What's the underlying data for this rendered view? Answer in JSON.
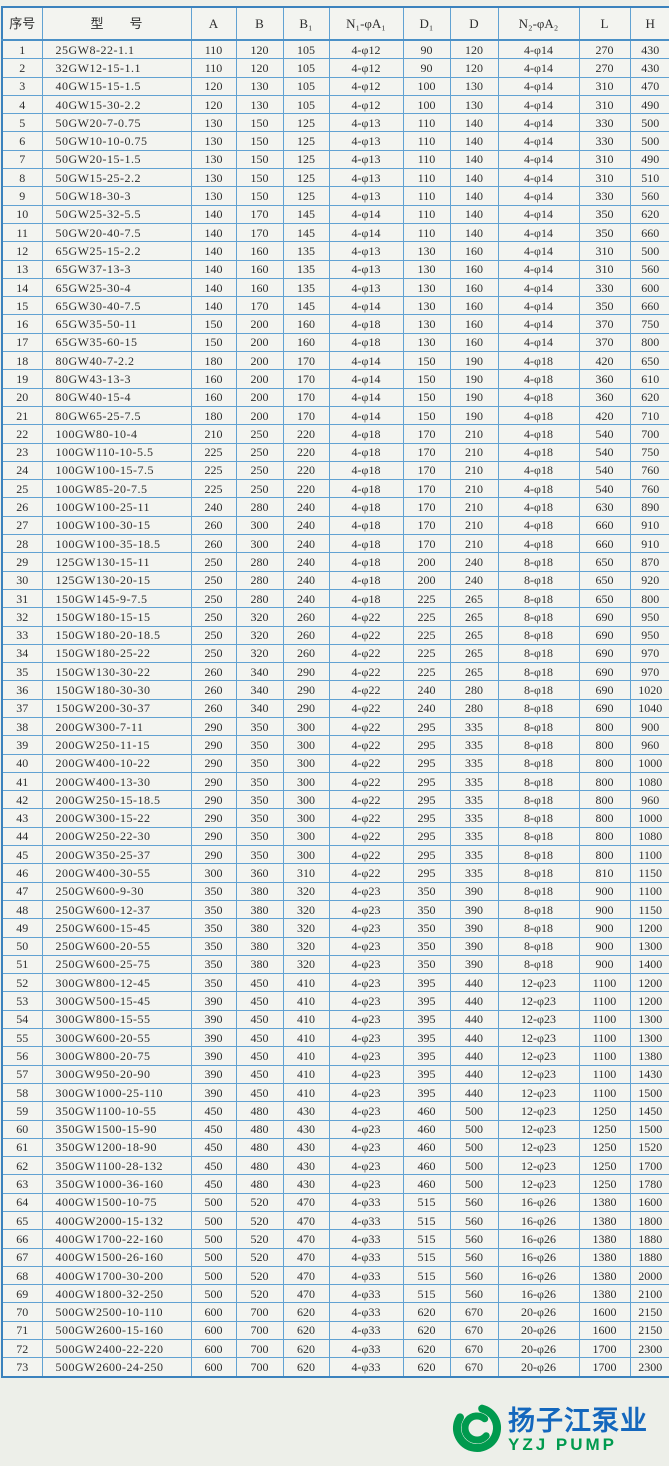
{
  "table": {
    "columns": [
      "序号",
      "型　　号",
      "A",
      "B",
      "B₁",
      "N₁-φA₁",
      "D₁",
      "D",
      "N₂-φA₂",
      "L",
      "H"
    ],
    "rows": [
      [
        "1",
        "25GW8-22-1.1",
        "110",
        "120",
        "105",
        "4-φ12",
        "90",
        "120",
        "4-φ14",
        "270",
        "430"
      ],
      [
        "2",
        "32GW12-15-1.1",
        "110",
        "120",
        "105",
        "4-φ12",
        "90",
        "120",
        "4-φ14",
        "270",
        "430"
      ],
      [
        "3",
        "40GW15-15-1.5",
        "120",
        "130",
        "105",
        "4-φ12",
        "100",
        "130",
        "4-φ14",
        "310",
        "470"
      ],
      [
        "4",
        "40GW15-30-2.2",
        "120",
        "130",
        "105",
        "4-φ12",
        "100",
        "130",
        "4-φ14",
        "310",
        "490"
      ],
      [
        "5",
        "50GW20-7-0.75",
        "130",
        "150",
        "125",
        "4-φ13",
        "110",
        "140",
        "4-φ14",
        "330",
        "500"
      ],
      [
        "6",
        "50GW10-10-0.75",
        "130",
        "150",
        "125",
        "4-φ13",
        "110",
        "140",
        "4-φ14",
        "330",
        "500"
      ],
      [
        "7",
        "50GW20-15-1.5",
        "130",
        "150",
        "125",
        "4-φ13",
        "110",
        "140",
        "4-φ14",
        "310",
        "490"
      ],
      [
        "8",
        "50GW15-25-2.2",
        "130",
        "150",
        "125",
        "4-φ13",
        "110",
        "140",
        "4-φ14",
        "310",
        "510"
      ],
      [
        "9",
        "50GW18-30-3",
        "130",
        "150",
        "125",
        "4-φ13",
        "110",
        "140",
        "4-φ14",
        "330",
        "560"
      ],
      [
        "10",
        "50GW25-32-5.5",
        "140",
        "170",
        "145",
        "4-φ14",
        "110",
        "140",
        "4-φ14",
        "350",
        "620"
      ],
      [
        "11",
        "50GW20-40-7.5",
        "140",
        "170",
        "145",
        "4-φ14",
        "110",
        "140",
        "4-φ14",
        "350",
        "660"
      ],
      [
        "12",
        "65GW25-15-2.2",
        "140",
        "160",
        "135",
        "4-φ13",
        "130",
        "160",
        "4-φ14",
        "310",
        "500"
      ],
      [
        "13",
        "65GW37-13-3",
        "140",
        "160",
        "135",
        "4-φ13",
        "130",
        "160",
        "4-φ14",
        "310",
        "560"
      ],
      [
        "14",
        "65GW25-30-4",
        "140",
        "160",
        "135",
        "4-φ13",
        "130",
        "160",
        "4-φ14",
        "330",
        "600"
      ],
      [
        "15",
        "65GW30-40-7.5",
        "140",
        "170",
        "145",
        "4-φ14",
        "130",
        "160",
        "4-φ14",
        "350",
        "660"
      ],
      [
        "16",
        "65GW35-50-11",
        "150",
        "200",
        "160",
        "4-φ18",
        "130",
        "160",
        "4-φ14",
        "370",
        "750"
      ],
      [
        "17",
        "65GW35-60-15",
        "150",
        "200",
        "160",
        "4-φ18",
        "130",
        "160",
        "4-φ14",
        "370",
        "800"
      ],
      [
        "18",
        "80GW40-7-2.2",
        "180",
        "200",
        "170",
        "4-φ14",
        "150",
        "190",
        "4-φ18",
        "420",
        "650"
      ],
      [
        "19",
        "80GW43-13-3",
        "160",
        "200",
        "170",
        "4-φ14",
        "150",
        "190",
        "4-φ18",
        "360",
        "610"
      ],
      [
        "20",
        "80GW40-15-4",
        "160",
        "200",
        "170",
        "4-φ14",
        "150",
        "190",
        "4-φ18",
        "360",
        "620"
      ],
      [
        "21",
        "80GW65-25-7.5",
        "180",
        "200",
        "170",
        "4-φ14",
        "150",
        "190",
        "4-φ18",
        "420",
        "710"
      ],
      [
        "22",
        "100GW80-10-4",
        "210",
        "250",
        "220",
        "4-φ18",
        "170",
        "210",
        "4-φ18",
        "540",
        "700"
      ],
      [
        "23",
        "100GW110-10-5.5",
        "225",
        "250",
        "220",
        "4-φ18",
        "170",
        "210",
        "4-φ18",
        "540",
        "750"
      ],
      [
        "24",
        "100GW100-15-7.5",
        "225",
        "250",
        "220",
        "4-φ18",
        "170",
        "210",
        "4-φ18",
        "540",
        "760"
      ],
      [
        "25",
        "100GW85-20-7.5",
        "225",
        "250",
        "220",
        "4-φ18",
        "170",
        "210",
        "4-φ18",
        "540",
        "760"
      ],
      [
        "26",
        "100GW100-25-11",
        "240",
        "280",
        "240",
        "4-φ18",
        "170",
        "210",
        "4-φ18",
        "630",
        "890"
      ],
      [
        "27",
        "100GW100-30-15",
        "260",
        "300",
        "240",
        "4-φ18",
        "170",
        "210",
        "4-φ18",
        "660",
        "910"
      ],
      [
        "28",
        "100GW100-35-18.5",
        "260",
        "300",
        "240",
        "4-φ18",
        "170",
        "210",
        "4-φ18",
        "660",
        "910"
      ],
      [
        "29",
        "125GW130-15-11",
        "250",
        "280",
        "240",
        "4-φ18",
        "200",
        "240",
        "8-φ18",
        "650",
        "870"
      ],
      [
        "30",
        "125GW130-20-15",
        "250",
        "280",
        "240",
        "4-φ18",
        "200",
        "240",
        "8-φ18",
        "650",
        "920"
      ],
      [
        "31",
        "150GW145-9-7.5",
        "250",
        "280",
        "240",
        "4-φ18",
        "225",
        "265",
        "8-φ18",
        "650",
        "800"
      ],
      [
        "32",
        "150GW180-15-15",
        "250",
        "320",
        "260",
        "4-φ22",
        "225",
        "265",
        "8-φ18",
        "690",
        "950"
      ],
      [
        "33",
        "150GW180-20-18.5",
        "250",
        "320",
        "260",
        "4-φ22",
        "225",
        "265",
        "8-φ18",
        "690",
        "950"
      ],
      [
        "34",
        "150GW180-25-22",
        "250",
        "320",
        "260",
        "4-φ22",
        "225",
        "265",
        "8-φ18",
        "690",
        "970"
      ],
      [
        "35",
        "150GW130-30-22",
        "260",
        "340",
        "290",
        "4-φ22",
        "225",
        "265",
        "8-φ18",
        "690",
        "970"
      ],
      [
        "36",
        "150GW180-30-30",
        "260",
        "340",
        "290",
        "4-φ22",
        "240",
        "280",
        "8-φ18",
        "690",
        "1020"
      ],
      [
        "37",
        "150GW200-30-37",
        "260",
        "340",
        "290",
        "4-φ22",
        "240",
        "280",
        "8-φ18",
        "690",
        "1040"
      ],
      [
        "38",
        "200GW300-7-11",
        "290",
        "350",
        "300",
        "4-φ22",
        "295",
        "335",
        "8-φ18",
        "800",
        "900"
      ],
      [
        "39",
        "200GW250-11-15",
        "290",
        "350",
        "300",
        "4-φ22",
        "295",
        "335",
        "8-φ18",
        "800",
        "960"
      ],
      [
        "40",
        "200GW400-10-22",
        "290",
        "350",
        "300",
        "4-φ22",
        "295",
        "335",
        "8-φ18",
        "800",
        "1000"
      ],
      [
        "41",
        "200GW400-13-30",
        "290",
        "350",
        "300",
        "4-φ22",
        "295",
        "335",
        "8-φ18",
        "800",
        "1080"
      ],
      [
        "42",
        "200GW250-15-18.5",
        "290",
        "350",
        "300",
        "4-φ22",
        "295",
        "335",
        "8-φ18",
        "800",
        "960"
      ],
      [
        "43",
        "200GW300-15-22",
        "290",
        "350",
        "300",
        "4-φ22",
        "295",
        "335",
        "8-φ18",
        "800",
        "1000"
      ],
      [
        "44",
        "200GW250-22-30",
        "290",
        "350",
        "300",
        "4-φ22",
        "295",
        "335",
        "8-φ18",
        "800",
        "1080"
      ],
      [
        "45",
        "200GW350-25-37",
        "290",
        "350",
        "300",
        "4-φ22",
        "295",
        "335",
        "8-φ18",
        "800",
        "1100"
      ],
      [
        "46",
        "200GW400-30-55",
        "300",
        "360",
        "310",
        "4-φ22",
        "295",
        "335",
        "8-φ18",
        "810",
        "1150"
      ],
      [
        "47",
        "250GW600-9-30",
        "350",
        "380",
        "320",
        "4-φ23",
        "350",
        "390",
        "8-φ18",
        "900",
        "1100"
      ],
      [
        "48",
        "250GW600-12-37",
        "350",
        "380",
        "320",
        "4-φ23",
        "350",
        "390",
        "8-φ18",
        "900",
        "1150"
      ],
      [
        "49",
        "250GW600-15-45",
        "350",
        "380",
        "320",
        "4-φ23",
        "350",
        "390",
        "8-φ18",
        "900",
        "1200"
      ],
      [
        "50",
        "250GW600-20-55",
        "350",
        "380",
        "320",
        "4-φ23",
        "350",
        "390",
        "8-φ18",
        "900",
        "1300"
      ],
      [
        "51",
        "250GW600-25-75",
        "350",
        "380",
        "320",
        "4-φ23",
        "350",
        "390",
        "8-φ18",
        "900",
        "1400"
      ],
      [
        "52",
        "300GW800-12-45",
        "350",
        "450",
        "410",
        "4-φ23",
        "395",
        "440",
        "12-φ23",
        "1100",
        "1200"
      ],
      [
        "53",
        "300GW500-15-45",
        "390",
        "450",
        "410",
        "4-φ23",
        "395",
        "440",
        "12-φ23",
        "1100",
        "1200"
      ],
      [
        "54",
        "300GW800-15-55",
        "390",
        "450",
        "410",
        "4-φ23",
        "395",
        "440",
        "12-φ23",
        "1100",
        "1300"
      ],
      [
        "55",
        "300GW600-20-55",
        "390",
        "450",
        "410",
        "4-φ23",
        "395",
        "440",
        "12-φ23",
        "1100",
        "1300"
      ],
      [
        "56",
        "300GW800-20-75",
        "390",
        "450",
        "410",
        "4-φ23",
        "395",
        "440",
        "12-φ23",
        "1100",
        "1380"
      ],
      [
        "57",
        "300GW950-20-90",
        "390",
        "450",
        "410",
        "4-φ23",
        "395",
        "440",
        "12-φ23",
        "1100",
        "1430"
      ],
      [
        "58",
        "300GW1000-25-110",
        "390",
        "450",
        "410",
        "4-φ23",
        "395",
        "440",
        "12-φ23",
        "1100",
        "1500"
      ],
      [
        "59",
        "350GW1100-10-55",
        "450",
        "480",
        "430",
        "4-φ23",
        "460",
        "500",
        "12-φ23",
        "1250",
        "1450"
      ],
      [
        "60",
        "350GW1500-15-90",
        "450",
        "480",
        "430",
        "4-φ23",
        "460",
        "500",
        "12-φ23",
        "1250",
        "1500"
      ],
      [
        "61",
        "350GW1200-18-90",
        "450",
        "480",
        "430",
        "4-φ23",
        "460",
        "500",
        "12-φ23",
        "1250",
        "1520"
      ],
      [
        "62",
        "350GW1100-28-132",
        "450",
        "480",
        "430",
        "4-φ23",
        "460",
        "500",
        "12-φ23",
        "1250",
        "1700"
      ],
      [
        "63",
        "350GW1000-36-160",
        "450",
        "480",
        "430",
        "4-φ23",
        "460",
        "500",
        "12-φ23",
        "1250",
        "1780"
      ],
      [
        "64",
        "400GW1500-10-75",
        "500",
        "520",
        "470",
        "4-φ33",
        "515",
        "560",
        "16-φ26",
        "1380",
        "1600"
      ],
      [
        "65",
        "400GW2000-15-132",
        "500",
        "520",
        "470",
        "4-φ33",
        "515",
        "560",
        "16-φ26",
        "1380",
        "1800"
      ],
      [
        "66",
        "400GW1700-22-160",
        "500",
        "520",
        "470",
        "4-φ33",
        "515",
        "560",
        "16-φ26",
        "1380",
        "1880"
      ],
      [
        "67",
        "400GW1500-26-160",
        "500",
        "520",
        "470",
        "4-φ33",
        "515",
        "560",
        "16-φ26",
        "1380",
        "1880"
      ],
      [
        "68",
        "400GW1700-30-200",
        "500",
        "520",
        "470",
        "4-φ33",
        "515",
        "560",
        "16-φ26",
        "1380",
        "2000"
      ],
      [
        "69",
        "400GW1800-32-250",
        "500",
        "520",
        "470",
        "4-φ33",
        "515",
        "560",
        "16-φ26",
        "1380",
        "2100"
      ],
      [
        "70",
        "500GW2500-10-110",
        "600",
        "700",
        "620",
        "4-φ33",
        "620",
        "670",
        "20-φ26",
        "1600",
        "2150"
      ],
      [
        "71",
        "500GW2600-15-160",
        "600",
        "700",
        "620",
        "4-φ33",
        "620",
        "670",
        "20-φ26",
        "1600",
        "2150"
      ],
      [
        "72",
        "500GW2400-22-220",
        "600",
        "700",
        "620",
        "4-φ33",
        "620",
        "670",
        "20-φ26",
        "1700",
        "2300"
      ],
      [
        "73",
        "500GW2600-24-250",
        "600",
        "700",
        "620",
        "4-φ33",
        "620",
        "670",
        "20-φ26",
        "1700",
        "2300"
      ]
    ]
  },
  "logo": {
    "chinese_name": "扬子江泵业",
    "english_name": "YZJ PUMP",
    "icon": "green-swirl-icon",
    "colors": {
      "green": "#009a4e",
      "blue": "#1467bd"
    }
  },
  "colors": {
    "table_border": "#61a2d2",
    "outer_border": "#3b82bd",
    "cell_background": "#f3f4f0",
    "page_background": "#edefe9",
    "text": "#2e2e2e"
  }
}
